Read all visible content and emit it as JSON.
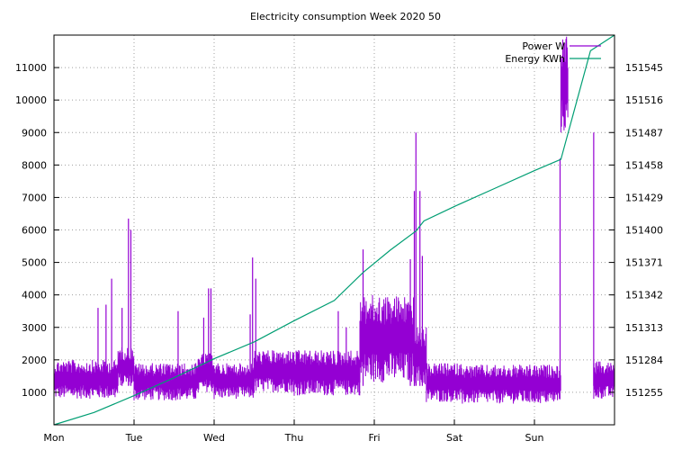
{
  "chart_data": {
    "type": "line",
    "title": "Electricity consumption Week 2020 50",
    "xlabel": "",
    "ylabel": "",
    "y2label": "",
    "x_ticks": [
      "Mon",
      "Tue",
      "Wed",
      "Thu",
      "Fri",
      "Sat",
      "Sun"
    ],
    "x_range_days": [
      0,
      7
    ],
    "y_left": {
      "range": [
        0,
        12000
      ],
      "ticks": [
        1000,
        2000,
        3000,
        4000,
        5000,
        6000,
        7000,
        8000,
        9000,
        10000,
        11000
      ]
    },
    "y_right": {
      "range": [
        151226.0,
        151574.0
      ],
      "ticks": [
        151255,
        151284,
        151313,
        151342,
        151371,
        151400,
        151429,
        151458,
        151487,
        151516,
        151545
      ]
    },
    "grid": true,
    "legend_position": "top-right",
    "colors": {
      "power": "#9400d3",
      "energy": "#009e73",
      "grid": "#a0a0a0",
      "axis": "#000000"
    },
    "series": [
      {
        "name": "Power W",
        "axis": "left",
        "style": "impulse-dense",
        "segments": [
          {
            "start_day": 0.0,
            "end_day": 0.8,
            "low": 800,
            "high": 2000
          },
          {
            "start_day": 0.8,
            "end_day": 1.0,
            "low": 1200,
            "high": 2400
          },
          {
            "start_day": 1.0,
            "end_day": 1.8,
            "low": 750,
            "high": 1900
          },
          {
            "start_day": 1.8,
            "end_day": 2.0,
            "low": 1000,
            "high": 2200
          },
          {
            "start_day": 2.0,
            "end_day": 2.5,
            "low": 800,
            "high": 1900
          },
          {
            "start_day": 2.5,
            "end_day": 3.0,
            "low": 1000,
            "high": 2300
          },
          {
            "start_day": 3.0,
            "end_day": 3.82,
            "low": 900,
            "high": 2300
          },
          {
            "start_day": 3.82,
            "end_day": 4.5,
            "low": 1300,
            "high": 4000
          },
          {
            "start_day": 4.5,
            "end_day": 4.65,
            "low": 1200,
            "high": 3000
          },
          {
            "start_day": 4.65,
            "end_day": 5.1,
            "low": 700,
            "high": 1900
          },
          {
            "start_day": 5.1,
            "end_day": 6.33,
            "low": 650,
            "high": 1850
          },
          {
            "start_day": 6.33,
            "end_day": 6.42,
            "low": 9000,
            "high": 12000
          },
          {
            "start_day": 6.74,
            "end_day": 7.0,
            "low": 800,
            "high": 1950
          }
        ],
        "spikes": [
          {
            "day": 0.55,
            "value": 3600
          },
          {
            "day": 0.65,
            "value": 3700
          },
          {
            "day": 0.72,
            "value": 4500
          },
          {
            "day": 0.85,
            "value": 3600
          },
          {
            "day": 0.93,
            "value": 6350
          },
          {
            "day": 0.96,
            "value": 6000
          },
          {
            "day": 1.55,
            "value": 3500
          },
          {
            "day": 1.87,
            "value": 3300
          },
          {
            "day": 1.93,
            "value": 4200
          },
          {
            "day": 1.96,
            "value": 4200
          },
          {
            "day": 2.45,
            "value": 3400
          },
          {
            "day": 2.48,
            "value": 5150
          },
          {
            "day": 2.52,
            "value": 4500
          },
          {
            "day": 3.55,
            "value": 3500
          },
          {
            "day": 3.65,
            "value": 3000
          },
          {
            "day": 3.86,
            "value": 5400
          },
          {
            "day": 4.45,
            "value": 5100
          },
          {
            "day": 4.5,
            "value": 7200
          },
          {
            "day": 4.52,
            "value": 9000
          },
          {
            "day": 4.57,
            "value": 7200
          },
          {
            "day": 4.6,
            "value": 5200
          },
          {
            "day": 6.32,
            "value": 8200
          },
          {
            "day": 6.74,
            "value": 9000
          }
        ]
      },
      {
        "name": "Energy KWh",
        "axis": "right",
        "style": "line",
        "points": [
          [
            0.0,
            151226.0
          ],
          [
            0.5,
            151237.0
          ],
          [
            1.0,
            151252.0
          ],
          [
            1.5,
            151268.0
          ],
          [
            2.0,
            151285.0
          ],
          [
            2.5,
            151300.0
          ],
          [
            3.0,
            151319.0
          ],
          [
            3.5,
            151337.0
          ],
          [
            3.86,
            151362.0
          ],
          [
            4.2,
            151382.0
          ],
          [
            4.52,
            151399.0
          ],
          [
            4.62,
            151408.0
          ],
          [
            5.0,
            151421.0
          ],
          [
            5.5,
            151437.0
          ],
          [
            6.0,
            151453.0
          ],
          [
            6.33,
            151463.0
          ],
          [
            6.7,
            151560.0
          ],
          [
            7.0,
            151574.0
          ]
        ]
      }
    ]
  }
}
